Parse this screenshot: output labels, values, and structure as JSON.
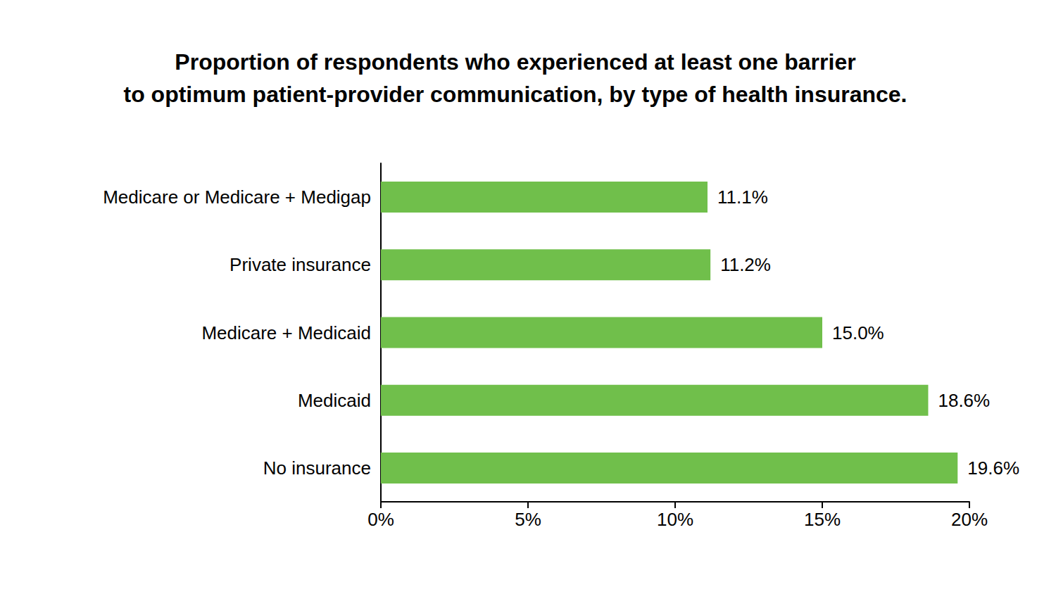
{
  "chart_data": {
    "type": "bar",
    "title": "Proportion of respondents who experienced at least one barrier\nto optimum patient-provider communication, by type of health insurance.",
    "orientation": "horizontal",
    "categories": [
      "Medicare or Medicare + Medigap",
      "Private insurance",
      "Medicare + Medicaid",
      "Medicaid",
      "No insurance"
    ],
    "values": [
      11.1,
      11.2,
      15.0,
      18.6,
      19.6
    ],
    "value_labels": [
      "11.1%",
      "11.2%",
      "15.0%",
      "18.6%",
      "19.6%"
    ],
    "color": "#70bf4b",
    "xlim": [
      0,
      20
    ],
    "xticks": [
      {
        "value": 0,
        "label": "0%"
      },
      {
        "value": 5,
        "label": "5%"
      },
      {
        "value": 10,
        "label": "10%"
      },
      {
        "value": 15,
        "label": "15%"
      },
      {
        "value": 20,
        "label": "20%"
      }
    ],
    "grid": false,
    "data_labels": true
  }
}
